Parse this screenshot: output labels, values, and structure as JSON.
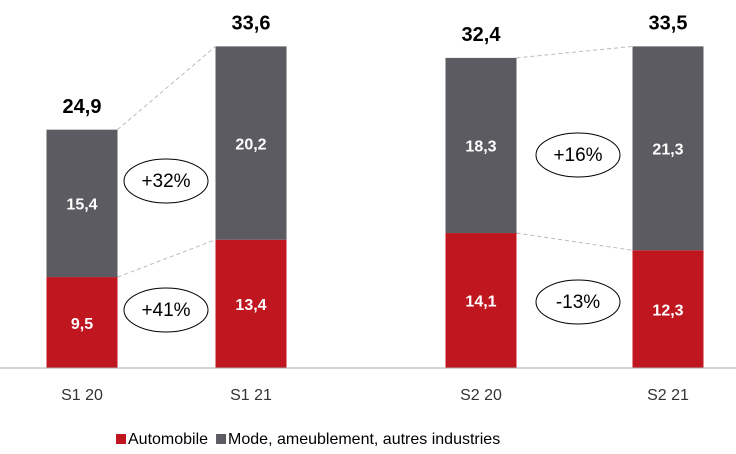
{
  "chart_data": {
    "type": "stacked_bar",
    "categories": [
      "S1 20",
      "S1 21",
      "S2 20",
      "S2 21"
    ],
    "series": [
      {
        "name": "Automobile",
        "color": "#c0161f",
        "values": [
          9.5,
          13.4,
          14.1,
          12.3
        ],
        "value_labels": [
          "9,5",
          "13,4",
          "14,1",
          "12,3"
        ]
      },
      {
        "name": "Mode, ameublement, autres industries",
        "color": "#5b5b61",
        "values": [
          15.4,
          20.2,
          18.3,
          21.3
        ],
        "value_labels": [
          "15,4",
          "20,2",
          "18,3",
          "21,3"
        ]
      }
    ],
    "totals": [
      24.9,
      33.6,
      32.4,
      33.5
    ],
    "total_labels": [
      "24,9",
      "33,6",
      "32,4",
      "33,5"
    ],
    "annotations": [
      "+32%",
      "+41%",
      "+16%",
      "-13%"
    ],
    "ylim": [
      0,
      35
    ]
  }
}
